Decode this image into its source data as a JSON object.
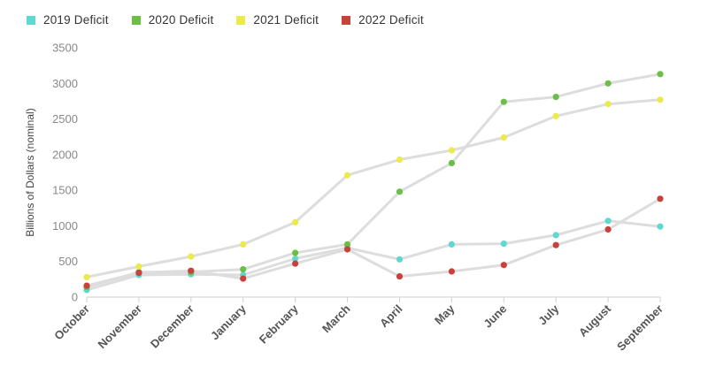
{
  "chart_data": {
    "type": "line",
    "title": "",
    "xlabel": "",
    "ylabel": "Billions of Dollars (nominal)",
    "ylim": [
      0,
      3500
    ],
    "yticks": [
      0,
      500,
      1000,
      1500,
      2000,
      2500,
      3000,
      3500
    ],
    "grid": false,
    "legend_position": "top-left",
    "line_color": "#dddddd",
    "categories": [
      "October",
      "November",
      "December",
      "January",
      "February",
      "March",
      "April",
      "May",
      "June",
      "July",
      "August",
      "September"
    ],
    "series": [
      {
        "name": "2019 Deficit",
        "color": "#5fd9d0",
        "values": [
          100,
          310,
          320,
          310,
          540,
          690,
          530,
          740,
          750,
          870,
          1070,
          990
        ]
      },
      {
        "name": "2020 Deficit",
        "color": "#6abf45",
        "values": [
          140,
          350,
          350,
          390,
          620,
          740,
          1480,
          1880,
          2740,
          2810,
          3000,
          3130
        ]
      },
      {
        "name": "2021 Deficit",
        "color": "#eaea4a",
        "values": [
          280,
          430,
          570,
          740,
          1050,
          1710,
          1930,
          2060,
          2240,
          2540,
          2710,
          2770
        ]
      },
      {
        "name": "2022 Deficit",
        "color": "#c9413a",
        "values": [
          160,
          340,
          370,
          260,
          470,
          670,
          290,
          360,
          450,
          730,
          950,
          1380
        ]
      }
    ]
  }
}
